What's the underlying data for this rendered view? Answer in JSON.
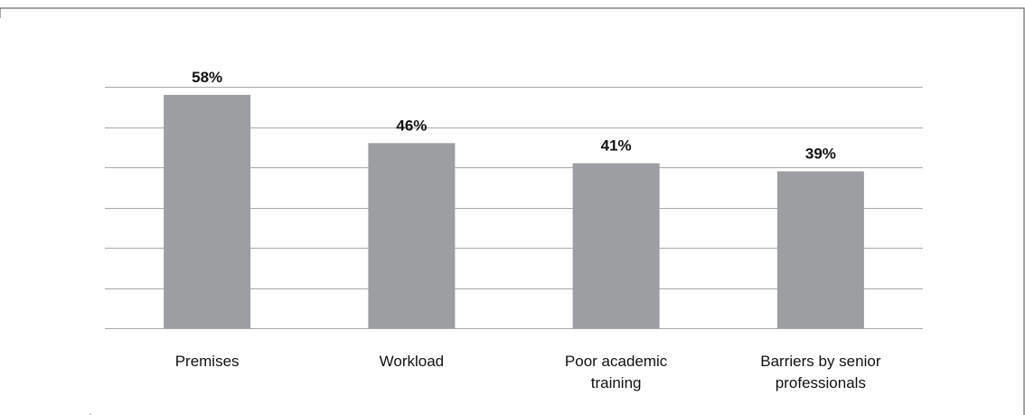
{
  "chart_data": {
    "type": "bar",
    "categories": [
      "Premises",
      "Workload",
      "Poor academic training",
      "Barriers by senior professionals"
    ],
    "category_lines": [
      [
        "Premises"
      ],
      [
        "Workload"
      ],
      [
        "Poor academic",
        "training"
      ],
      [
        "Barriers by senior",
        "professionals"
      ]
    ],
    "values": [
      58,
      46,
      41,
      39
    ],
    "value_labels": [
      "58%",
      "46%",
      "41%",
      "39%"
    ],
    "ylim": [
      0,
      60
    ],
    "y_gridlines": [
      0,
      10,
      20,
      30,
      40,
      50,
      60
    ],
    "grid": true,
    "title": "",
    "xlabel": "",
    "ylabel": "",
    "colors": {
      "bar": "#9d9ea1",
      "grid": "#a9a9a9",
      "text": "#111111"
    }
  }
}
